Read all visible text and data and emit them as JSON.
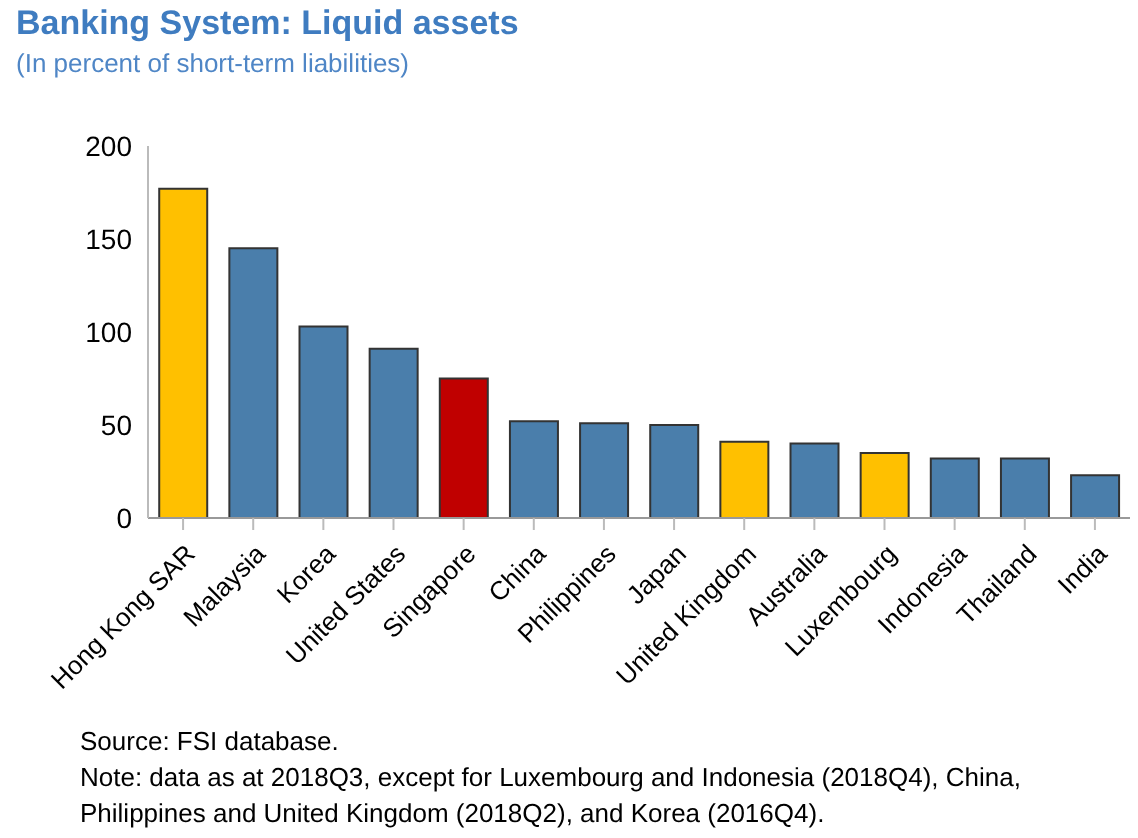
{
  "chart_data": {
    "type": "bar",
    "title": "Banking System: Liquid assets",
    "subtitle": "(In percent of short-term liabilities)",
    "categories": [
      "Hong Kong SAR",
      "Malaysia",
      "Korea",
      "United States",
      "Singapore",
      "China",
      "Philippines",
      "Japan",
      "United Kingdom",
      "Australia",
      "Luxembourg",
      "Indonesia",
      "Thailand",
      "India"
    ],
    "values": [
      177,
      145,
      103,
      91,
      75,
      52,
      51,
      50,
      41,
      40,
      35,
      32,
      32,
      23
    ],
    "colors": [
      "#ffc000",
      "#4a7eab",
      "#4a7eab",
      "#4a7eab",
      "#c00000",
      "#4a7eab",
      "#4a7eab",
      "#4a7eab",
      "#ffc000",
      "#4a7eab",
      "#ffc000",
      "#4a7eab",
      "#4a7eab",
      "#4a7eab"
    ],
    "ylim": [
      0,
      200
    ],
    "yticks": [
      0,
      50,
      100,
      150,
      200
    ],
    "grid": false,
    "legend": false,
    "annotations": [
      "Source: FSI database.",
      "Note: data as at 2018Q3, except for Luxembourg and Indonesia (2018Q4), China, Philippines and United Kingdom (2018Q2), and Korea (2016Q4)."
    ]
  }
}
